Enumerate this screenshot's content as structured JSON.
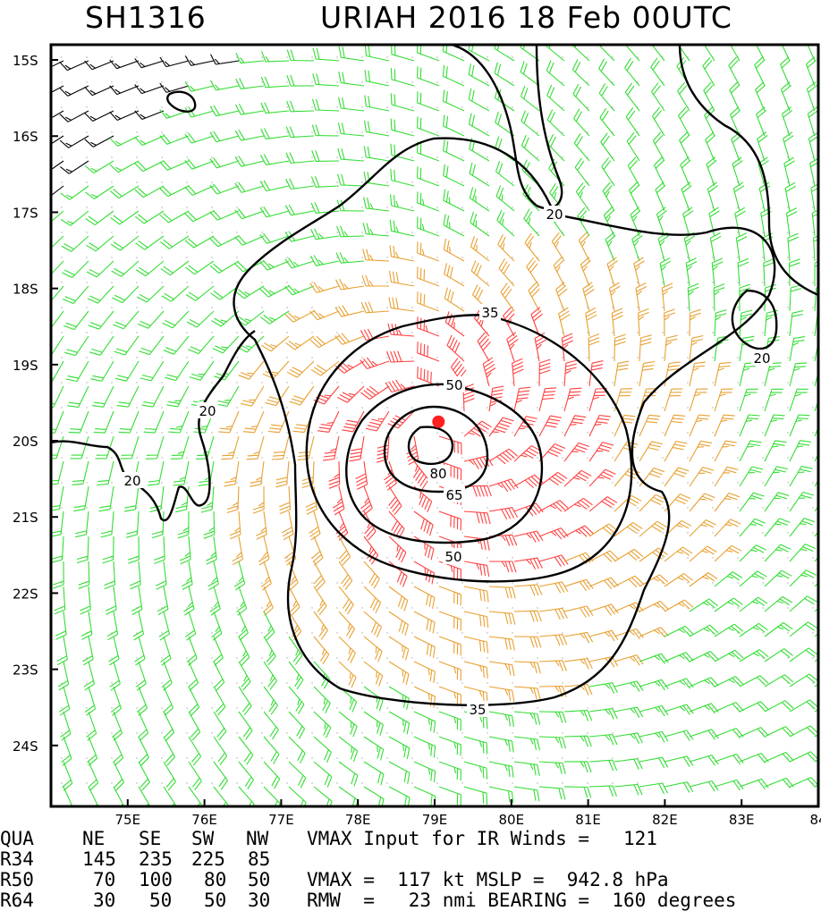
{
  "title": {
    "storm_id": "SH1316",
    "storm_info": "URIAH 2016 18 Feb 00UTC"
  },
  "map": {
    "lon_range": [
      74,
      84
    ],
    "lat_range": [
      -24.8,
      -14.8
    ],
    "lat_labels": [
      "15S",
      "16S",
      "17S",
      "18S",
      "19S",
      "20S",
      "21S",
      "22S",
      "23S",
      "24S"
    ],
    "lon_labels": [
      "75E",
      "76E",
      "77E",
      "78E",
      "79E",
      "80E",
      "81E",
      "82E",
      "83E",
      "84"
    ],
    "center": {
      "lon": 79.05,
      "lat": -19.75,
      "color": "#ff2020"
    },
    "contour_labels": [
      "20",
      "20",
      "20",
      "20",
      "35",
      "35",
      "50",
      "50",
      "65",
      "80"
    ],
    "barb_colors": {
      "lt34": "#000000",
      "34to50": "#33dd33",
      "50to64": "#e8a030",
      "ge64": "#ff4040"
    }
  },
  "footer": {
    "header": {
      "qua": "QUA",
      "ne": "NE",
      "se": "SE",
      "sw": "SW",
      "nw": "NW"
    },
    "rows": [
      {
        "label": "R34",
        "ne": "145",
        "se": "235",
        "sw": "225",
        "nw": "85"
      },
      {
        "label": "R50",
        "ne": "70",
        "se": "100",
        "sw": "80",
        "nw": "50"
      },
      {
        "label": "R64",
        "ne": "30",
        "se": "50",
        "sw": "50",
        "nw": "30"
      }
    ],
    "vmax_input": "VMAX Input for IR Winds =   121",
    "vmax_mslp": "VMAX =  117 kt MSLP =  942.8 hPa",
    "rmw_bearing": "RMW  =   23 nmi BEARING =  160 degrees"
  }
}
